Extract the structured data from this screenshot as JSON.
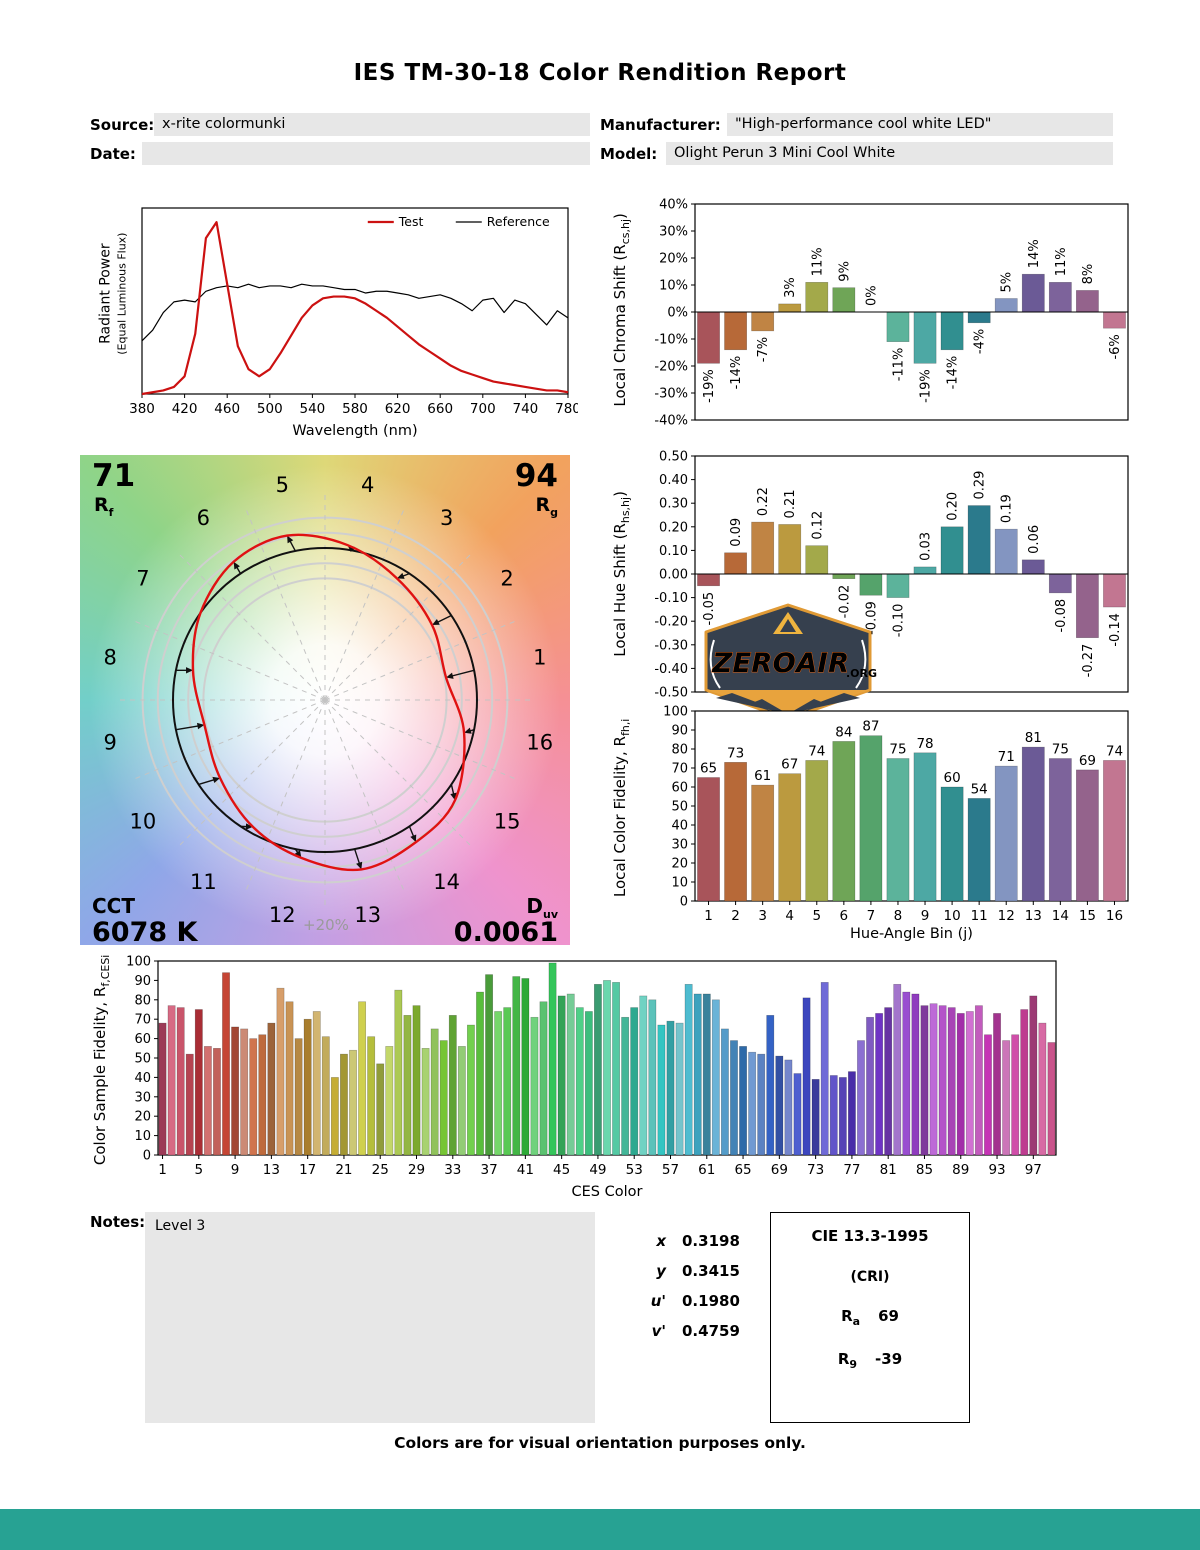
{
  "title": "IES TM-30-18 Color Rendition Report",
  "header": {
    "source_label": "Source:",
    "source_value": "x-rite colormunki",
    "manufacturer_label": "Manufacturer:",
    "manufacturer_value": "\"High-performance cool white LED\"",
    "date_label": "Date:",
    "date_value": "",
    "model_label": "Model:",
    "model_value": "Olight Perun 3 Mini Cool White"
  },
  "axis_labels": {
    "spd_y1": "Radiant Power",
    "spd_y2": "(Equal Luminous Flux)",
    "chroma_pre": "Local Chroma Shift (R",
    "chroma_sub": "cs,hj",
    "chroma_post": ")",
    "hue_pre": "Local Hue Shift (R",
    "hue_sub": "hs,hj",
    "hue_post": ")",
    "lcf_pre": "Local Color Fidelity, R",
    "lcf_sub": "fh,i",
    "ces_pre": "Color Sample Fidelity, R",
    "ces_sub": "f,CESi"
  },
  "cvg": {
    "rf_value": "71",
    "rf_base": "R",
    "rf_sub": "f",
    "rg_value": "94",
    "rg_base": "R",
    "rg_sub": "g",
    "cct_label": "CCT",
    "cct_value": "6078 K",
    "duv_base": "D",
    "duv_sub": "uv",
    "duv_value": "0.0061",
    "ring_label": "+20%",
    "bin_numbers": [
      "1",
      "2",
      "3",
      "4",
      "5",
      "6",
      "7",
      "8",
      "9",
      "10",
      "11",
      "12",
      "13",
      "14",
      "15",
      "16"
    ]
  },
  "logo": {
    "name": "ZEROAIR",
    "tld": ".ORG"
  },
  "notes": {
    "label": "Notes:",
    "value": "Level 3"
  },
  "chromaticity": {
    "rows": [
      {
        "label": "x",
        "value": "0.3198"
      },
      {
        "label": "y",
        "value": "0.3415"
      },
      {
        "label": "u'",
        "value": "0.1980"
      },
      {
        "label": "v'",
        "value": "0.4759"
      }
    ]
  },
  "cri": {
    "title": "CIE 13.3-1995",
    "subtitle": "(CRI)",
    "rows": [
      {
        "base": "R",
        "sub": "a",
        "value": "69"
      },
      {
        "base": "R",
        "sub": "9",
        "value": "-39"
      }
    ]
  },
  "footer": "Colors are for visual orientation purposes only.",
  "colors": {
    "field_bg": "#e7e7e7",
    "test_red": "#cc1111",
    "reference_black": "#000000",
    "bottom_bar": "#27a293",
    "bin_colors": [
      "#a8545a",
      "#b76938",
      "#c08444",
      "#bb9a3f",
      "#a3a94a",
      "#6fa557",
      "#55a36b",
      "#5cb39b",
      "#4da8a4",
      "#318f90",
      "#2b7a8c",
      "#8395c1",
      "#6b5a96",
      "#7d639b",
      "#94638c",
      "#c27691"
    ]
  },
  "chart_data": [
    {
      "id": "spd",
      "type": "line",
      "xlabel": "Wavelength (nm)",
      "xlim": [
        380,
        780
      ],
      "ymax": 1.05,
      "xtick_values": [
        380,
        420,
        460,
        500,
        540,
        580,
        620,
        660,
        700,
        740,
        780
      ],
      "legend": [
        {
          "name": "Test",
          "color": "#cc1111",
          "lw": 2.2,
          "text_color": "#cc1111"
        },
        {
          "name": "Reference",
          "color": "#000000",
          "lw": 1.2,
          "text_color": "#000000"
        }
      ],
      "x": [
        380,
        390,
        400,
        410,
        420,
        430,
        440,
        450,
        460,
        470,
        480,
        490,
        500,
        510,
        520,
        530,
        540,
        550,
        560,
        570,
        580,
        590,
        600,
        610,
        620,
        630,
        640,
        650,
        660,
        670,
        680,
        690,
        700,
        710,
        720,
        730,
        740,
        750,
        760,
        770,
        780
      ],
      "series": [
        {
          "name": "Reference",
          "color": "#000000",
          "lw": 1.2,
          "y": [
            0.3,
            0.36,
            0.46,
            0.52,
            0.53,
            0.52,
            0.58,
            0.6,
            0.61,
            0.6,
            0.62,
            0.6,
            0.61,
            0.61,
            0.6,
            0.62,
            0.61,
            0.61,
            0.6,
            0.59,
            0.59,
            0.57,
            0.58,
            0.58,
            0.57,
            0.56,
            0.54,
            0.55,
            0.56,
            0.54,
            0.51,
            0.47,
            0.53,
            0.54,
            0.46,
            0.53,
            0.51,
            0.45,
            0.39,
            0.47,
            0.43
          ]
        },
        {
          "name": "Test",
          "color": "#cc1111",
          "lw": 2.2,
          "y": [
            0.0,
            0.01,
            0.02,
            0.04,
            0.1,
            0.34,
            0.88,
            0.97,
            0.62,
            0.27,
            0.14,
            0.1,
            0.14,
            0.23,
            0.33,
            0.43,
            0.5,
            0.54,
            0.55,
            0.55,
            0.54,
            0.51,
            0.47,
            0.43,
            0.38,
            0.33,
            0.28,
            0.24,
            0.2,
            0.16,
            0.13,
            0.11,
            0.09,
            0.07,
            0.06,
            0.05,
            0.04,
            0.03,
            0.02,
            0.02,
            0.01
          ]
        }
      ]
    },
    {
      "id": "chroma_shift",
      "type": "bar",
      "categories": [
        1,
        2,
        3,
        4,
        5,
        6,
        7,
        8,
        9,
        10,
        11,
        12,
        13,
        14,
        15,
        16
      ],
      "values": [
        -19,
        -14,
        -7,
        3,
        11,
        9,
        0,
        -11,
        -19,
        -14,
        -4,
        5,
        14,
        11,
        8,
        -6
      ],
      "value_labels": [
        "-19%",
        "-14%",
        "-7%",
        "3%",
        "11%",
        "9%",
        "0%",
        "-11%",
        "-19%",
        "-14%",
        "-4%",
        "5%",
        "14%",
        "11%",
        "8%",
        "-6%"
      ],
      "ylim": [
        -40,
        40
      ],
      "ytick_values": [
        40,
        30,
        20,
        10,
        0,
        -10,
        -20,
        -30,
        -40
      ],
      "ytick_labels": [
        "40%",
        "30%",
        "20%",
        "10%",
        "0%",
        "-10%",
        "-20%",
        "-30%",
        "-40%"
      ]
    },
    {
      "id": "hue_shift",
      "type": "bar",
      "categories": [
        1,
        2,
        3,
        4,
        5,
        6,
        7,
        8,
        9,
        10,
        11,
        12,
        13,
        14,
        15,
        16
      ],
      "values": [
        -0.05,
        0.09,
        0.22,
        0.21,
        0.12,
        -0.02,
        -0.09,
        -0.1,
        0.03,
        0.2,
        0.29,
        0.19,
        0.06,
        -0.08,
        -0.27,
        -0.14
      ],
      "value_labels": [
        "-0.05",
        "0.09",
        "0.22",
        "0.21",
        "0.12",
        "-0.02",
        "-0.09",
        "-0.10",
        "0.03",
        "0.20",
        "0.29",
        "0.19",
        "0.06",
        "-0.08",
        "-0.27",
        "-0.14"
      ],
      "ylim": [
        -0.5,
        0.5
      ],
      "ytick_values": [
        0.5,
        0.4,
        0.3,
        0.2,
        0.1,
        0,
        -0.1,
        -0.2,
        -0.3,
        -0.4,
        -0.5
      ],
      "ytick_labels": [
        "0.50",
        "0.40",
        "0.30",
        "0.20",
        "0.10",
        "0.00",
        "-0.10",
        "-0.20",
        "-0.30",
        "-0.40",
        "-0.50"
      ]
    },
    {
      "id": "local_fidelity",
      "type": "bar",
      "xlabel": "Hue-Angle Bin (j)",
      "categories": [
        1,
        2,
        3,
        4,
        5,
        6,
        7,
        8,
        9,
        10,
        11,
        12,
        13,
        14,
        15,
        16
      ],
      "values": [
        65,
        73,
        61,
        67,
        74,
        84,
        87,
        75,
        78,
        60,
        54,
        71,
        81,
        75,
        69,
        74
      ],
      "value_labels": [
        "65",
        "73",
        "61",
        "67",
        "74",
        "84",
        "87",
        "75",
        "78",
        "60",
        "54",
        "71",
        "81",
        "75",
        "69",
        "74"
      ],
      "ylim": [
        0,
        100
      ],
      "ytick_values": [
        100,
        90,
        80,
        70,
        60,
        50,
        40,
        30,
        20,
        10,
        0
      ],
      "ytick_labels": [
        "100",
        "90",
        "80",
        "70",
        "60",
        "50",
        "40",
        "30",
        "20",
        "10",
        "0"
      ],
      "xtick_values": [
        1,
        2,
        3,
        4,
        5,
        6,
        7,
        8,
        9,
        10,
        11,
        12,
        13,
        14,
        15,
        16
      ]
    },
    {
      "id": "ces",
      "type": "bar",
      "xlabel": "CES Color",
      "values": [
        68,
        77,
        76,
        52,
        75,
        56,
        55,
        94,
        66,
        65,
        60,
        62,
        68,
        86,
        79,
        60,
        70,
        74,
        61,
        40,
        52,
        54,
        79,
        61,
        47,
        56,
        85,
        72,
        77,
        55,
        65,
        59,
        72,
        56,
        67,
        84,
        93,
        74,
        76,
        92,
        91,
        71,
        79,
        99,
        82,
        83,
        76,
        74,
        88,
        90,
        89,
        71,
        76,
        82,
        80,
        67,
        69,
        68,
        88,
        83,
        83,
        80,
        65,
        59,
        56,
        53,
        52,
        72,
        51,
        49,
        42,
        81,
        39,
        89,
        41,
        40,
        43,
        59,
        71,
        73,
        76,
        88,
        84,
        83,
        77,
        78,
        77,
        76,
        73,
        74,
        77,
        62,
        73,
        59,
        62,
        75,
        82,
        68,
        58
      ],
      "ylim": [
        0,
        100
      ],
      "ytick_values": [
        100,
        90,
        80,
        70,
        60,
        50,
        40,
        30,
        20,
        10,
        0
      ],
      "ytick_labels": [
        "100",
        "90",
        "80",
        "70",
        "60",
        "50",
        "40",
        "30",
        "20",
        "10",
        "0"
      ],
      "xtick_values": [
        1,
        5,
        9,
        13,
        17,
        21,
        25,
        29,
        33,
        37,
        41,
        45,
        49,
        53,
        57,
        61,
        65,
        69,
        73,
        77,
        81,
        85,
        89,
        93,
        97
      ]
    }
  ]
}
